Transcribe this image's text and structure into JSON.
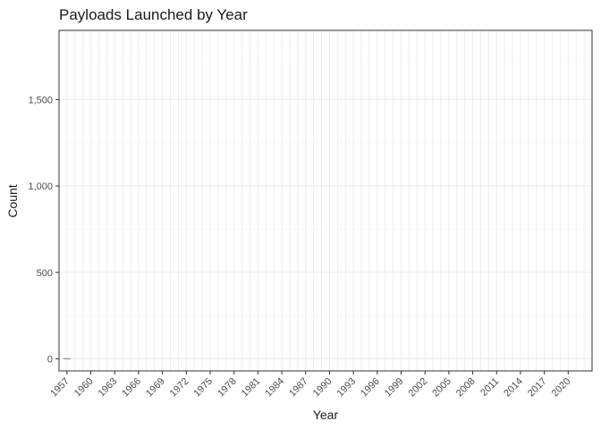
{
  "chart_data": {
    "type": "bar",
    "title": "Payloads Launched by Year",
    "xlabel": "Year",
    "ylabel": "Count",
    "x_tick_labels": [
      "1957",
      "1960",
      "1963",
      "1966",
      "1969",
      "1972",
      "1975",
      "1978",
      "1981",
      "1984",
      "1987",
      "1990",
      "1993",
      "1996",
      "1999",
      "2002",
      "2005",
      "2008",
      "2011",
      "2014",
      "2017",
      "2020"
    ],
    "y_tick_labels": [
      "0",
      "500",
      "1,000",
      "1,500"
    ],
    "y_ticks": [
      0,
      500,
      1000,
      1500
    ],
    "ylim": [
      -70,
      1900
    ],
    "x_range": [
      1956,
      2023
    ],
    "categories": [
      1957
    ],
    "values": [
      2
    ],
    "grid": true,
    "legend": "none",
    "colors": {
      "grid_major": "#ebebeb",
      "grid_minor": "#f5f5f5",
      "panel_border": "#333333",
      "bar": "#595959"
    }
  }
}
